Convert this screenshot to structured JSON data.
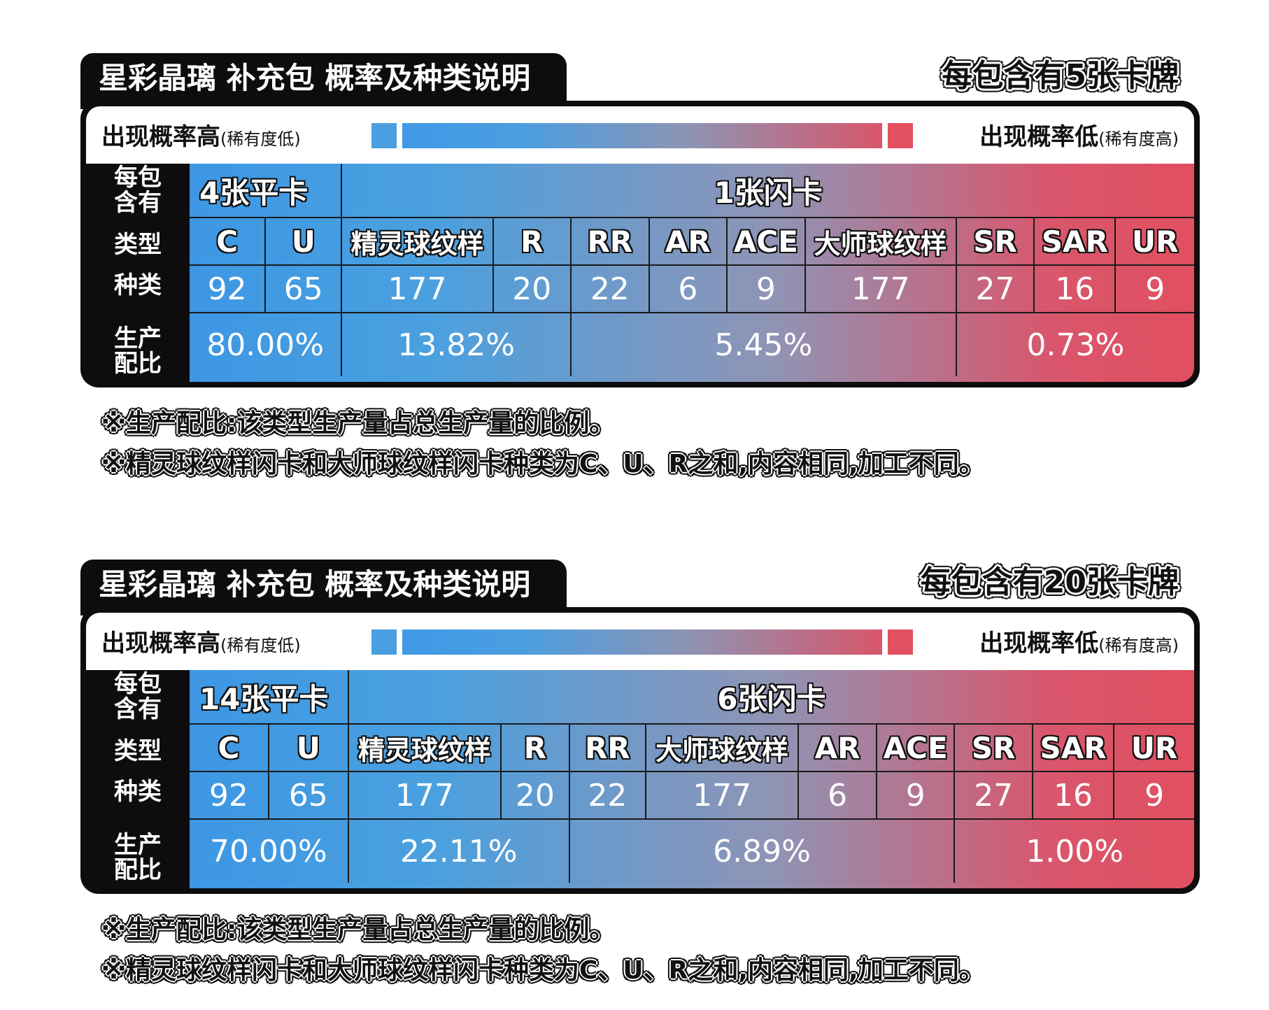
{
  "panels": [
    {
      "title": "星彩晶璃 补充包 概率及种类说明",
      "pack_count": "每包含有5张卡牌",
      "legend": {
        "high_label": "出现概率高",
        "high_sub": "(稀有度低)",
        "low_label": "出现概率低",
        "low_sub": "(稀有度高)"
      },
      "row_labels": {
        "per_pack": "每包含有",
        "type": "类型",
        "variety": "种类",
        "ratio": "生产配比"
      },
      "groups": [
        {
          "label": "4张平卡",
          "span": [
            0,
            2
          ]
        },
        {
          "label": "1张闪卡",
          "span": [
            2,
            11
          ]
        }
      ],
      "columns": [
        {
          "type": "C",
          "variety": "92"
        },
        {
          "type": "U",
          "variety": "65"
        },
        {
          "type": "精灵球纹样",
          "variety": "177"
        },
        {
          "type": "R",
          "variety": "20"
        },
        {
          "type": "RR",
          "variety": "22"
        },
        {
          "type": "AR",
          "variety": "6"
        },
        {
          "type": "ACE",
          "variety": "9"
        },
        {
          "type": "大师球纹样",
          "variety": "177"
        },
        {
          "type": "SR",
          "variety": "27"
        },
        {
          "type": "SAR",
          "variety": "16"
        },
        {
          "type": "UR",
          "variety": "9"
        }
      ],
      "ratios": [
        {
          "value": "80.00%",
          "span": [
            0,
            2
          ]
        },
        {
          "value": "13.82%",
          "span": [
            2,
            4
          ]
        },
        {
          "value": "5.45%",
          "span": [
            4,
            8
          ]
        },
        {
          "value": "0.73%",
          "span": [
            8,
            11
          ]
        }
      ],
      "notes": [
        "※生产配比:该类型生产量占总生产量的比例。",
        "※精灵球纹样闪卡和大师球纹样闪卡种类为C、U、R之和,内容相同,加工不同。"
      ]
    },
    {
      "title": "星彩晶璃 补充包 概率及种类说明",
      "pack_count": "每包含有20张卡牌",
      "legend": {
        "high_label": "出现概率高",
        "high_sub": "(稀有度低)",
        "low_label": "出现概率低",
        "low_sub": "(稀有度高)"
      },
      "row_labels": {
        "per_pack": "每包含有",
        "type": "类型",
        "variety": "种类",
        "ratio": "生产配比"
      },
      "groups": [
        {
          "label": "14张平卡",
          "span": [
            0,
            2
          ]
        },
        {
          "label": "6张闪卡",
          "span": [
            2,
            11
          ]
        }
      ],
      "columns": [
        {
          "type": "C",
          "variety": "92"
        },
        {
          "type": "U",
          "variety": "65"
        },
        {
          "type": "精灵球纹样",
          "variety": "177"
        },
        {
          "type": "R",
          "variety": "20"
        },
        {
          "type": "RR",
          "variety": "22"
        },
        {
          "type": "大师球纹样",
          "variety": "177"
        },
        {
          "type": "AR",
          "variety": "6"
        },
        {
          "type": "ACE",
          "variety": "9"
        },
        {
          "type": "SR",
          "variety": "27"
        },
        {
          "type": "SAR",
          "variety": "16"
        },
        {
          "type": "UR",
          "variety": "9"
        }
      ],
      "ratios": [
        {
          "value": "70.00%",
          "span": [
            0,
            2
          ]
        },
        {
          "value": "22.11%",
          "span": [
            2,
            4
          ]
        },
        {
          "value": "6.89%",
          "span": [
            4,
            8
          ]
        },
        {
          "value": "1.00%",
          "span": [
            8,
            11
          ]
        }
      ],
      "notes": [
        "※生产配比:该类型生产量占总生产量的比例。",
        "※精灵球纹样闪卡和大师球纹样闪卡种类为C、U、R之和,内容相同,加工不同。"
      ]
    }
  ]
}
